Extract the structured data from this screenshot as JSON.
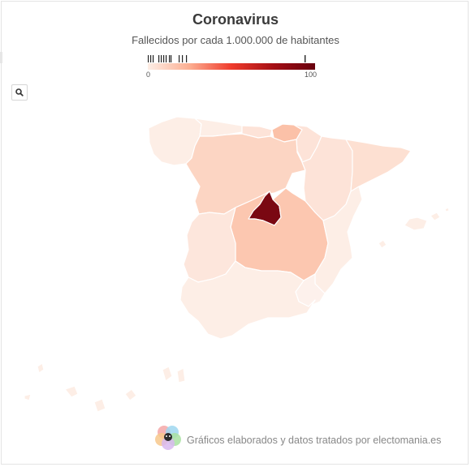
{
  "header": {
    "title": "Coronavirus",
    "subtitle": "Fallecidos por cada 1.000.000 de habitantes"
  },
  "legend": {
    "min_label": "0",
    "max_label": "100",
    "colors": [
      "#fdeee6",
      "#fcae91",
      "#ef3b2c",
      "#a50f15",
      "#67000d"
    ]
  },
  "controls": {
    "search_icon": "search-icon"
  },
  "footer": {
    "credit": "Gráficos elaborados y datos tratados por electomania.es",
    "logo_icon": "electomania-logo"
  },
  "map": {
    "regions": [
      {
        "id": "galicia",
        "color": "#fdeee6"
      },
      {
        "id": "asturias",
        "color": "#fdeee6"
      },
      {
        "id": "cantabria",
        "color": "#fde3d8"
      },
      {
        "id": "pais-vasco",
        "color": "#fbc1a8"
      },
      {
        "id": "navarra",
        "color": "#fde3d8"
      },
      {
        "id": "la-rioja",
        "color": "#fcd0bc"
      },
      {
        "id": "castilla-y-leon",
        "color": "#fcd5c3"
      },
      {
        "id": "aragon",
        "color": "#fde3d8"
      },
      {
        "id": "cataluna",
        "color": "#fde0d2"
      },
      {
        "id": "madrid",
        "color": "#7a0812"
      },
      {
        "id": "castilla-la-mancha",
        "color": "#fcc7b0"
      },
      {
        "id": "extremadura",
        "color": "#fde6dc"
      },
      {
        "id": "comunidad-valenciana",
        "color": "#fdeee6"
      },
      {
        "id": "baleares",
        "color": "#fdeee6"
      },
      {
        "id": "murcia",
        "color": "#fdf1ec"
      },
      {
        "id": "andalucia",
        "color": "#fdeee6"
      },
      {
        "id": "canarias",
        "color": "#fdeee6"
      }
    ]
  }
}
